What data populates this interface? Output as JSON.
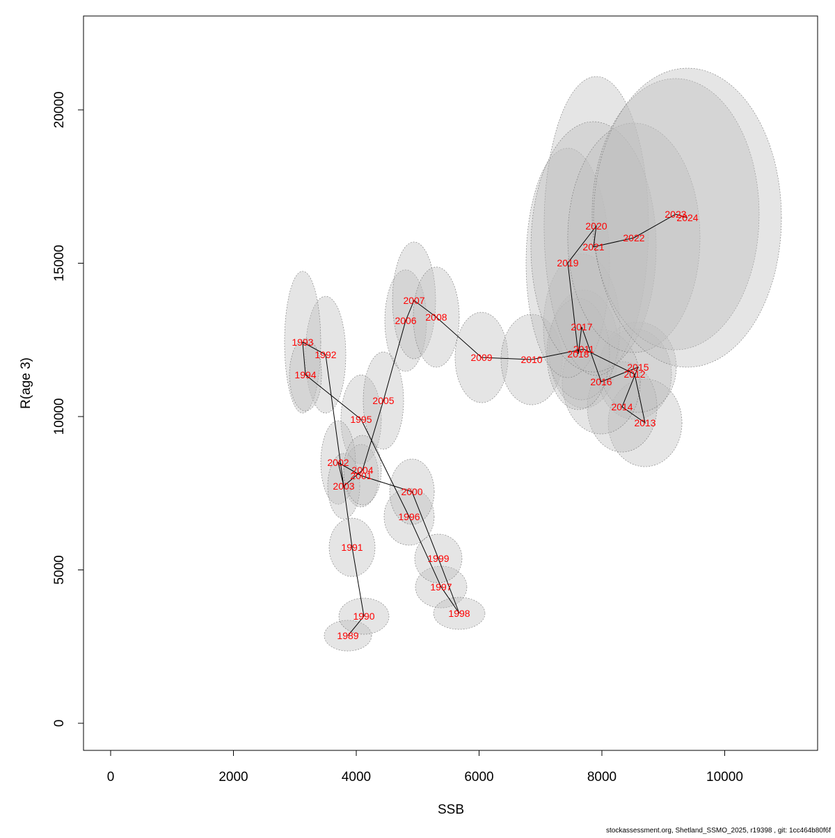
{
  "chart_data": {
    "type": "scatter",
    "xlabel": "SSB",
    "ylabel": "R(age 3)",
    "footer": "stockassessment.org, Shetland_SSMO_2025, r19398 , git: 1cc464b80f6f",
    "labels": [
      "1989",
      "1990",
      "1991",
      "1992",
      "1993",
      "1994",
      "1995",
      "1996",
      "1997",
      "1998",
      "1999",
      "2000",
      "2001",
      "2002",
      "2003",
      "2004",
      "2005",
      "2006",
      "2007",
      "2008",
      "2009",
      "2010",
      "2011",
      "2012",
      "2013",
      "2014",
      "2015",
      "2016",
      "2017",
      "2018",
      "2019",
      "2020",
      "2021",
      "2022",
      "2023",
      "2024"
    ],
    "x": [
      3864,
      4125,
      3932,
      3501,
      3127,
      3173,
      4079,
      4861,
      5382,
      5677,
      5337,
      4907,
      4079,
      3705,
      3796,
      4102,
      4442,
      4805,
      4941,
      5303,
      6040,
      6856,
      7705,
      8533,
      8703,
      8329,
      8589,
      7989,
      7671,
      7615,
      7445,
      7909,
      7864,
      8521,
      9201,
      9394
    ],
    "values": [
      2857,
      3492,
      5737,
      12018,
      12426,
      11361,
      9909,
      6735,
      4444,
      3583,
      5374,
      7551,
      8073,
      8503,
      7732,
      8254,
      10522,
      13129,
      13787,
      13243,
      11927,
      11859,
      12200,
      11383,
      9796,
      10317,
      11610,
      11134,
      12925,
      12041,
      15011,
      16213,
      15533,
      15828,
      16599,
      16485
    ],
    "ellipse_x_radius": [
      385,
      408,
      374,
      329,
      295,
      261,
      329,
      408,
      419,
      419,
      385,
      363,
      283,
      283,
      261,
      306,
      329,
      340,
      351,
      374,
      431,
      499,
      567,
      601,
      601,
      567,
      623,
      635,
      623,
      510,
      680,
      850,
      1020,
      1077,
      1360,
      1530
    ],
    "ellipse_y_radius": [
      500,
      590,
      952,
      1905,
      2313,
      1179,
      1451,
      930,
      680,
      522,
      794,
      1066,
      1020,
      1361,
      1066,
      1134,
      1587,
      1655,
      1905,
      1633,
      1474,
      1474,
      1927,
      1474,
      1429,
      1474,
      1474,
      1701,
      2381,
      1814,
      3741,
      4875,
      4082,
      3741,
      4422,
      4875
    ],
    "line_color": "#000000",
    "label_color": "#ff0000",
    "ellipse_color": "#bebebe",
    "xlim": [
      -442,
      11513
    ],
    "ylim": [
      -884,
      23061
    ],
    "xticks": [
      0,
      2000,
      4000,
      6000,
      8000,
      10000
    ],
    "yticks": [
      0,
      5000,
      10000,
      15000,
      20000
    ]
  }
}
